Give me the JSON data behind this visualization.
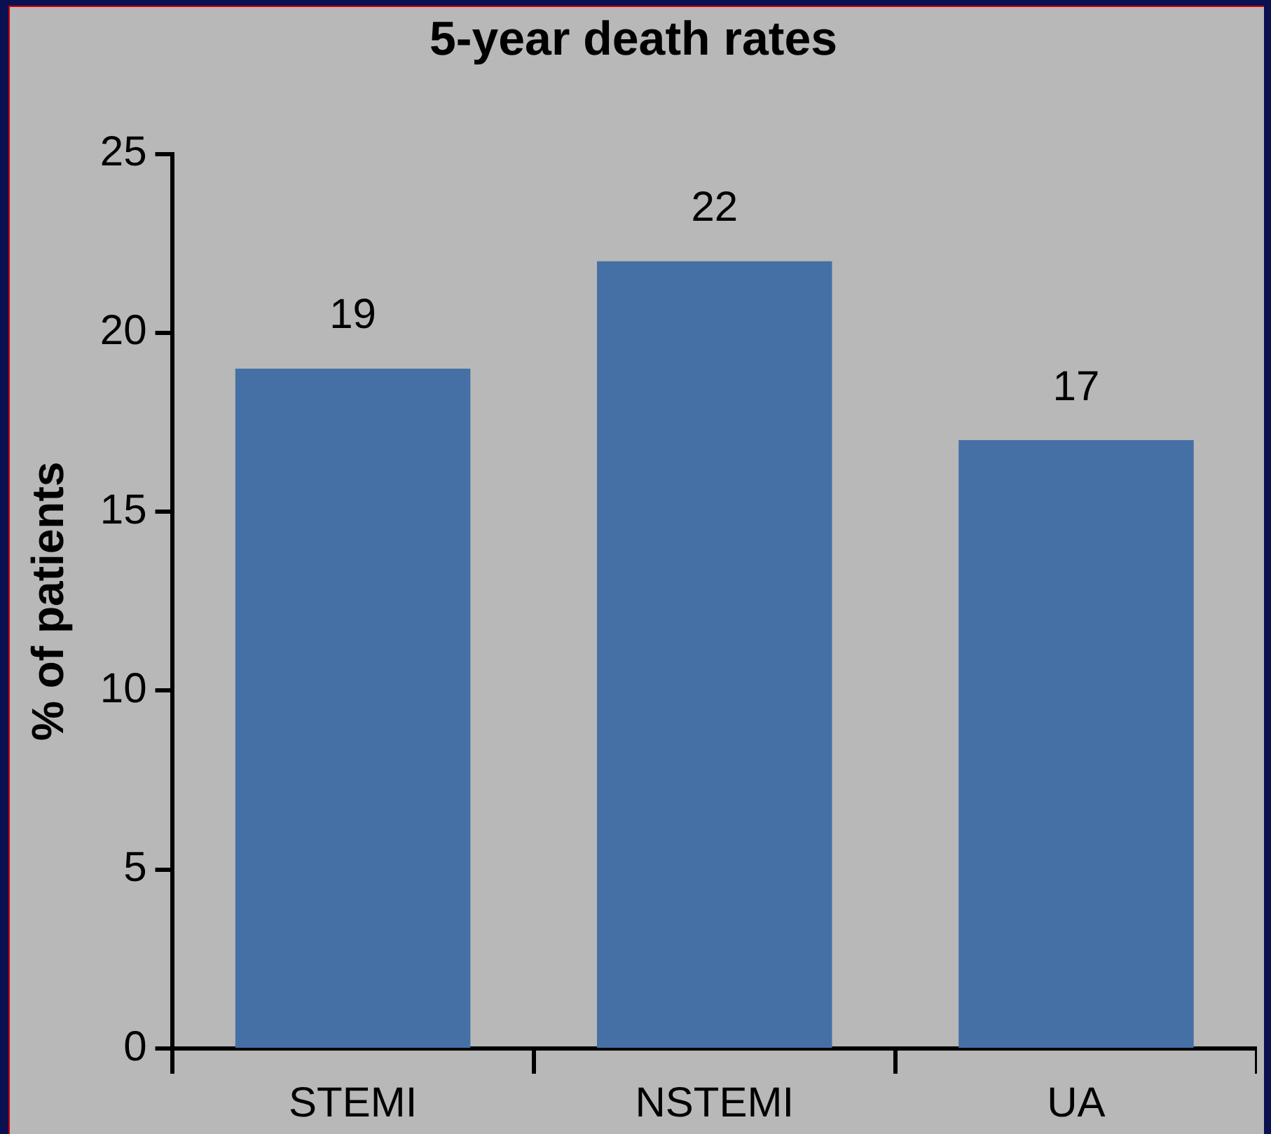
{
  "chart_data": {
    "type": "bar",
    "title": "5-year death rates",
    "ylabel": "% of patients",
    "categories": [
      "STEMI",
      "NSTEMI",
      "UA"
    ],
    "values": [
      19,
      22,
      17
    ],
    "color": "#4470a5",
    "ylim": [
      0,
      25
    ],
    "yticks": [
      0,
      5,
      10,
      15,
      20,
      25
    ],
    "grid": false,
    "legend": false,
    "data_labels": true
  }
}
